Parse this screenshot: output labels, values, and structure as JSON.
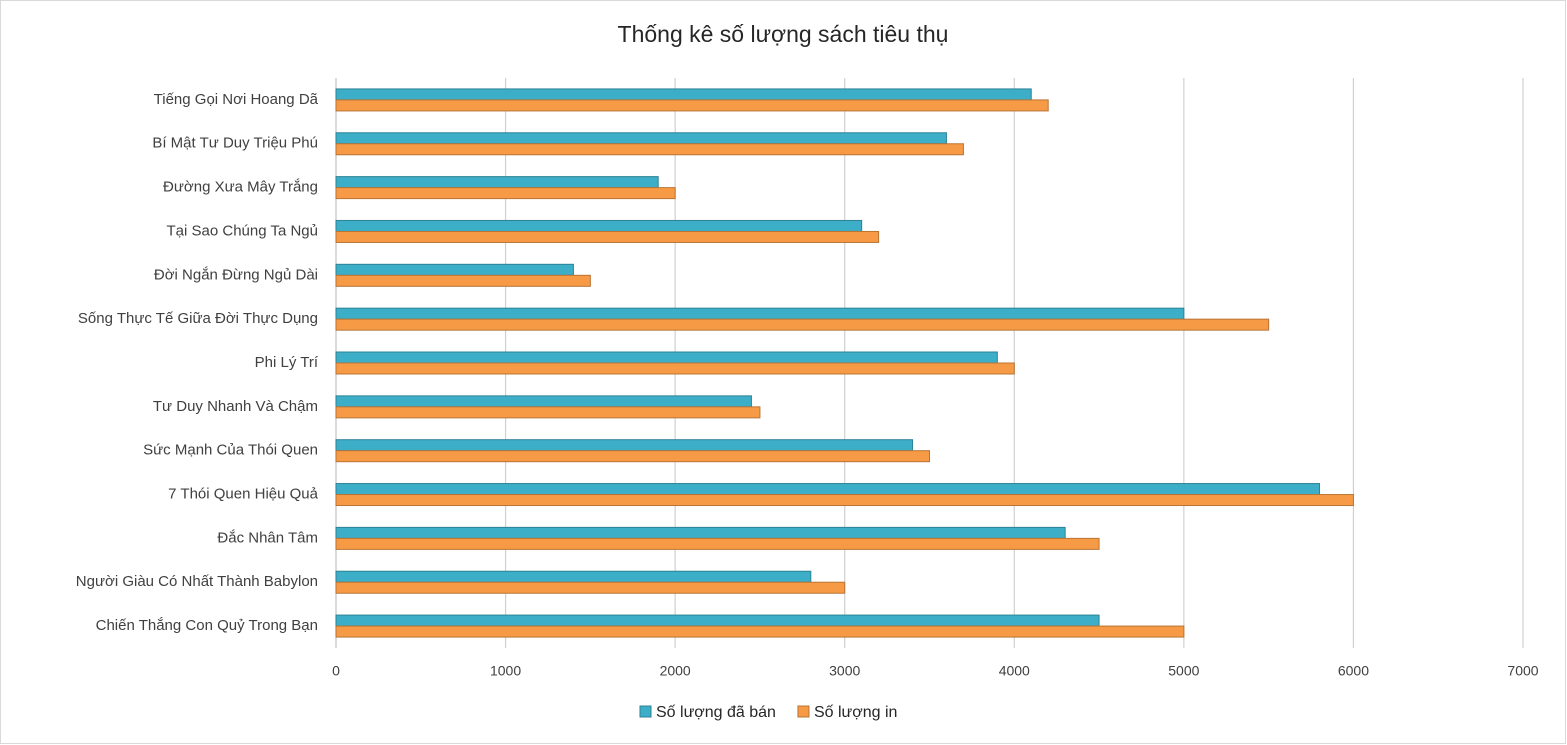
{
  "chart_data": {
    "type": "hbar",
    "title": "Thống kê số lượng sách tiêu thụ",
    "categories": [
      "Tiếng Gọi Nơi Hoang Dã",
      "Bí Mật Tư Duy Triệu Phú",
      "Đường Xưa Mây Trắng",
      "Tại Sao Chúng Ta Ngủ",
      "Đời Ngắn Đừng Ngủ Dài",
      "Sống Thực Tế Giữa Đời Thực Dụng",
      "Phi Lý Trí",
      "Tư Duy Nhanh Và Chậm",
      "Sức Mạnh Của Thói Quen",
      "7 Thói Quen Hiệu Quả",
      "Đắc Nhân Tâm",
      "Người Giàu Có Nhất Thành Babylon",
      "Chiến Thắng Con Quỷ Trong Bạn"
    ],
    "series": [
      {
        "name": "Số lượng đã bán",
        "color": "#3caec8",
        "values": [
          4100,
          3600,
          1900,
          3100,
          1400,
          5000,
          3900,
          2450,
          3400,
          5800,
          4300,
          2800,
          4500
        ]
      },
      {
        "name": "Số lượng in",
        "color": "#f79a45",
        "values": [
          4200,
          3700,
          2000,
          3200,
          1500,
          5500,
          4000,
          2500,
          3500,
          6000,
          4500,
          3000,
          5000
        ]
      }
    ],
    "xlim": [
      0,
      7000
    ],
    "xticks": [
      0,
      1000,
      2000,
      3000,
      4000,
      5000,
      6000,
      7000
    ],
    "grid": true,
    "legend": "bottom"
  }
}
